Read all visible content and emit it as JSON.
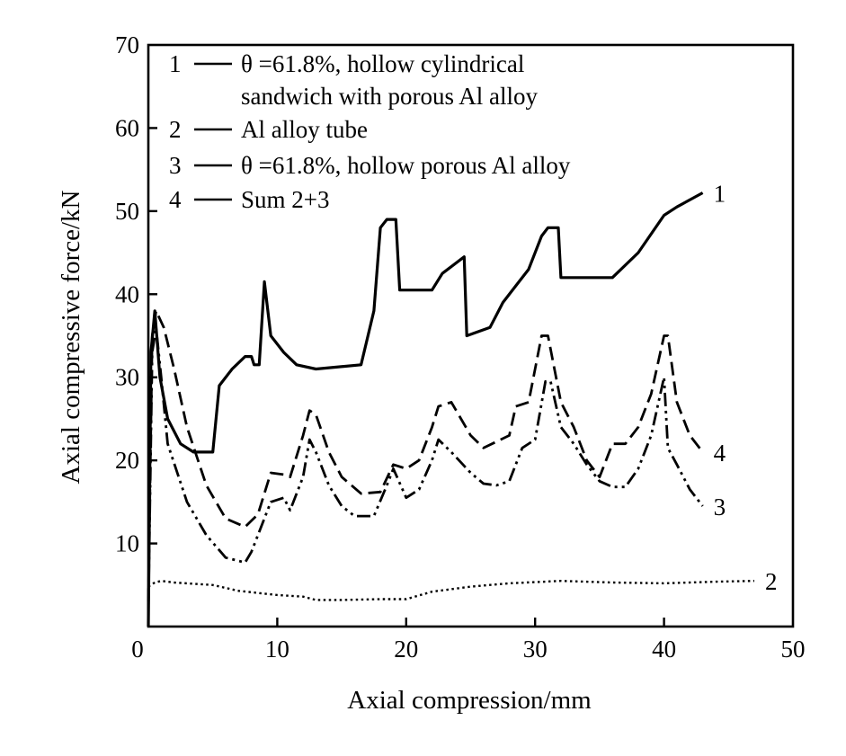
{
  "chart_data": {
    "type": "line",
    "xlabel": "Axial compression/mm",
    "ylabel": "Axial compressive force/kN",
    "xlim": [
      0,
      50
    ],
    "ylim": [
      0,
      70
    ],
    "xticks": [
      "0",
      "10",
      "20",
      "30",
      "40",
      "50"
    ],
    "yticks": [
      "10",
      "20",
      "30",
      "40",
      "50",
      "60",
      "70"
    ],
    "grid": false,
    "legend_position": "top",
    "legend": [
      {
        "num": "1",
        "line1": "θ =61.8%, hollow cylindrical",
        "line2": "sandwich with porous Al alloy"
      },
      {
        "num": "2",
        "line1": "Al alloy tube"
      },
      {
        "num": "3",
        "line1": "θ =61.8%, hollow porous Al alloy"
      },
      {
        "num": "4",
        "line1": "Sum 2+3"
      }
    ],
    "series": [
      {
        "name": "1",
        "style": "solid",
        "end_label": "1",
        "points": [
          [
            0,
            0
          ],
          [
            0.2,
            33
          ],
          [
            0.5,
            38
          ],
          [
            0.9,
            30
          ],
          [
            1.5,
            25
          ],
          [
            2.5,
            22
          ],
          [
            3.5,
            21
          ],
          [
            5,
            21
          ],
          [
            5.5,
            29
          ],
          [
            6.5,
            31
          ],
          [
            7.5,
            32.5
          ],
          [
            8,
            32.5
          ],
          [
            8.2,
            31.5
          ],
          [
            8.6,
            31.5
          ],
          [
            9,
            41.5
          ],
          [
            9.5,
            35
          ],
          [
            10.5,
            33
          ],
          [
            11.5,
            31.5
          ],
          [
            13,
            31
          ],
          [
            16.5,
            31.5
          ],
          [
            17.5,
            38
          ],
          [
            18,
            48
          ],
          [
            18.5,
            49
          ],
          [
            19.2,
            49
          ],
          [
            19.5,
            40.5
          ],
          [
            22,
            40.5
          ],
          [
            22.8,
            42.5
          ],
          [
            24.5,
            44.5
          ],
          [
            24.7,
            35
          ],
          [
            26.5,
            36
          ],
          [
            27.5,
            39
          ],
          [
            28.5,
            41
          ],
          [
            29.5,
            43
          ],
          [
            30.5,
            47
          ],
          [
            31,
            48
          ],
          [
            31.8,
            48
          ],
          [
            32,
            42
          ],
          [
            36,
            42
          ],
          [
            38,
            45
          ],
          [
            40,
            49.5
          ],
          [
            41,
            50.5
          ],
          [
            43,
            52.2
          ]
        ]
      },
      {
        "name": "2",
        "style": "dotted",
        "end_label": "2",
        "points": [
          [
            0,
            4.8
          ],
          [
            0.5,
            5.3
          ],
          [
            1,
            5.5
          ],
          [
            2,
            5.3
          ],
          [
            5,
            5
          ],
          [
            7,
            4.3
          ],
          [
            10,
            3.8
          ],
          [
            12,
            3.6
          ],
          [
            13,
            3.2
          ],
          [
            15,
            3.2
          ],
          [
            18,
            3.3
          ],
          [
            20,
            3.3
          ],
          [
            22,
            4.2
          ],
          [
            25,
            4.8
          ],
          [
            28,
            5.2
          ],
          [
            32,
            5.5
          ],
          [
            36,
            5.3
          ],
          [
            40,
            5.2
          ],
          [
            44,
            5.4
          ],
          [
            47,
            5.5
          ]
        ]
      },
      {
        "name": "3",
        "style": "dashdot",
        "end_label": "3",
        "points": [
          [
            0,
            2
          ],
          [
            0.3,
            33
          ],
          [
            0.6,
            36
          ],
          [
            1,
            30
          ],
          [
            1.5,
            22
          ],
          [
            3,
            15
          ],
          [
            4.5,
            11
          ],
          [
            6,
            8.3
          ],
          [
            7.5,
            7.7
          ],
          [
            8,
            9
          ],
          [
            9.5,
            15
          ],
          [
            10.5,
            15.5
          ],
          [
            11,
            14
          ],
          [
            12,
            18
          ],
          [
            12.5,
            22.5
          ],
          [
            13,
            21
          ],
          [
            14,
            17
          ],
          [
            15,
            14.5
          ],
          [
            16,
            13.3
          ],
          [
            17.5,
            13.3
          ],
          [
            18.5,
            17
          ],
          [
            19,
            19
          ],
          [
            20,
            15.5
          ],
          [
            21,
            16.5
          ],
          [
            22,
            20
          ],
          [
            22.5,
            22.5
          ],
          [
            23.5,
            21
          ],
          [
            25,
            18.5
          ],
          [
            26,
            17.2
          ],
          [
            27,
            17
          ],
          [
            28,
            17.5
          ],
          [
            29,
            21.5
          ],
          [
            30,
            22.5
          ],
          [
            30.8,
            29.5
          ],
          [
            31.2,
            29.5
          ],
          [
            32,
            24
          ],
          [
            33,
            22
          ],
          [
            34,
            19.5
          ],
          [
            35,
            17.5
          ],
          [
            36,
            16.8
          ],
          [
            37,
            16.8
          ],
          [
            38,
            19
          ],
          [
            39,
            23
          ],
          [
            40,
            30
          ],
          [
            40.3,
            21.5
          ],
          [
            41,
            19.5
          ],
          [
            42,
            16.5
          ],
          [
            43,
            14.5
          ]
        ]
      },
      {
        "name": "4",
        "style": "dashed",
        "end_label": "4",
        "points": [
          [
            0,
            3
          ],
          [
            0.3,
            35
          ],
          [
            0.6,
            38
          ],
          [
            1.2,
            36
          ],
          [
            2,
            31
          ],
          [
            3,
            24
          ],
          [
            4.5,
            17
          ],
          [
            6,
            13
          ],
          [
            7.5,
            12
          ],
          [
            8.5,
            13.5
          ],
          [
            9.5,
            18.5
          ],
          [
            10.5,
            18.3
          ],
          [
            11,
            18
          ],
          [
            12,
            23
          ],
          [
            12.5,
            26
          ],
          [
            13,
            25.5
          ],
          [
            14,
            21
          ],
          [
            15,
            18
          ],
          [
            16.5,
            16
          ],
          [
            18,
            16.2
          ],
          [
            19,
            19.5
          ],
          [
            20,
            19
          ],
          [
            21,
            20
          ],
          [
            22,
            24
          ],
          [
            22.5,
            26.5
          ],
          [
            23.5,
            27
          ],
          [
            25,
            23
          ],
          [
            26,
            21.5
          ],
          [
            28,
            23
          ],
          [
            28.5,
            26.5
          ],
          [
            29.5,
            27
          ],
          [
            30.5,
            35
          ],
          [
            31,
            35
          ],
          [
            32,
            27
          ],
          [
            33,
            24
          ],
          [
            34,
            20
          ],
          [
            35,
            18
          ],
          [
            35.5,
            20
          ],
          [
            36,
            22
          ],
          [
            37,
            22
          ],
          [
            38,
            24
          ],
          [
            39,
            28
          ],
          [
            40,
            35
          ],
          [
            40.3,
            35
          ],
          [
            41,
            27
          ],
          [
            42,
            23
          ],
          [
            43,
            21
          ]
        ]
      }
    ]
  }
}
